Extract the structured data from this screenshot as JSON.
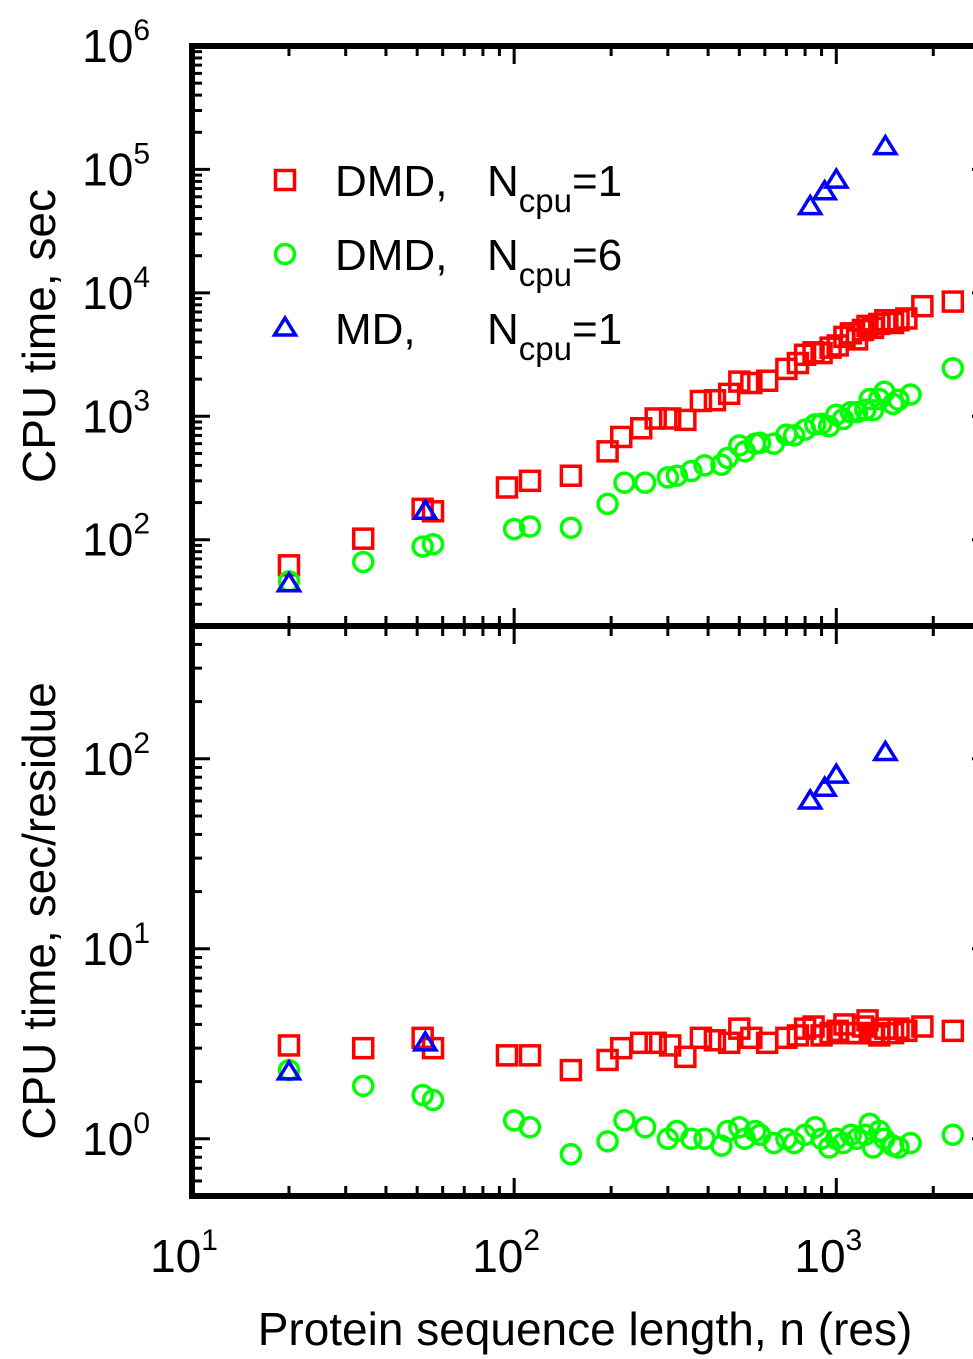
{
  "chart_data": {
    "type": "scatter",
    "xlabel": "Protein sequence length, n (res)",
    "x_scale": "log",
    "xlim": [
      10,
      3000
    ],
    "x_ticks": [
      {
        "value": 10,
        "base": "10",
        "exp": "1"
      },
      {
        "value": 100,
        "base": "10",
        "exp": "2"
      },
      {
        "value": 1000,
        "base": "10",
        "exp": "3"
      }
    ],
    "legend": {
      "placement": "top-left of upper panel",
      "entries": [
        {
          "series": "DMD, Ncpu=1",
          "name": "DMD, ",
          "var": "N",
          "sub": "cpu",
          "suffix": "=1",
          "marker": "square",
          "color": "#ff0000"
        },
        {
          "series": "DMD, Ncpu=6",
          "name": "DMD, ",
          "var": "N",
          "sub": "cpu",
          "suffix": "=6",
          "marker": "circle",
          "color": "#00ff00"
        },
        {
          "series": "MD, Ncpu=1",
          "name": "MD,",
          "var": "N",
          "sub": "cpu",
          "suffix": "=1",
          "marker": "triangle",
          "color": "#0000ff"
        }
      ]
    },
    "panels": [
      {
        "ylabel": "CPU time, sec",
        "y_scale": "log",
        "ylim": [
          20,
          1000000
        ],
        "y_ticks": [
          {
            "value": 100,
            "base": "10",
            "exp": "2"
          },
          {
            "value": 1000,
            "base": "10",
            "exp": "3"
          },
          {
            "value": 10000,
            "base": "10",
            "exp": "4"
          },
          {
            "value": 100000,
            "base": "10",
            "exp": "5"
          },
          {
            "value": 1000000,
            "base": "10",
            "exp": "6"
          }
        ],
        "series": [
          {
            "legend_ref": "DMD, Ncpu=1",
            "marker": "square",
            "color": "#ff0000",
            "points": [
              [
                20,
                62
              ],
              [
                34,
                102
              ],
              [
                52,
                178
              ],
              [
                56,
                170
              ],
              [
                95,
                265
              ],
              [
                112,
                300
              ],
              [
                150,
                330
              ],
              [
                195,
                520
              ],
              [
                215,
                680
              ],
              [
                248,
                800
              ],
              [
                275,
                960
              ],
              [
                305,
                960
              ],
              [
                340,
                935
              ],
              [
                380,
                1330
              ],
              [
                420,
                1350
              ],
              [
                465,
                1520
              ],
              [
                500,
                1910
              ],
              [
                545,
                1860
              ],
              [
                610,
                1940
              ],
              [
                700,
                2420
              ],
              [
                760,
                2700
              ],
              [
                800,
                3150
              ],
              [
                850,
                3300
              ],
              [
                900,
                3250
              ],
              [
                960,
                3600
              ],
              [
                1010,
                3750
              ],
              [
                1060,
                4400
              ],
              [
                1110,
                4700
              ],
              [
                1160,
                4200
              ],
              [
                1210,
                5000
              ],
              [
                1250,
                5400
              ],
              [
                1300,
                5200
              ],
              [
                1360,
                5600
              ],
              [
                1420,
                6000
              ],
              [
                1500,
                5700
              ],
              [
                1560,
                6000
              ],
              [
                1650,
                6200
              ],
              [
                1850,
                7800
              ],
              [
                2300,
                8500
              ]
            ]
          },
          {
            "legend_ref": "DMD, Ncpu=6",
            "marker": "circle",
            "color": "#00ff00",
            "points": [
              [
                20,
                46
              ],
              [
                34,
                66
              ],
              [
                52,
                88
              ],
              [
                56,
                92
              ],
              [
                100,
                122
              ],
              [
                112,
                128
              ],
              [
                150,
                125
              ],
              [
                195,
                195
              ],
              [
                220,
                290
              ],
              [
                255,
                290
              ],
              [
                300,
                320
              ],
              [
                320,
                330
              ],
              [
                355,
                360
              ],
              [
                390,
                400
              ],
              [
                440,
                405
              ],
              [
                460,
                460
              ],
              [
                500,
                580
              ],
              [
                520,
                520
              ],
              [
                560,
                600
              ],
              [
                580,
                610
              ],
              [
                640,
                600
              ],
              [
                700,
                710
              ],
              [
                740,
                700
              ],
              [
                800,
                780
              ],
              [
                860,
                860
              ],
              [
                900,
                870
              ],
              [
                950,
                830
              ],
              [
                1000,
                1030
              ],
              [
                1050,
                950
              ],
              [
                1110,
                1080
              ],
              [
                1160,
                1080
              ],
              [
                1230,
                1130
              ],
              [
                1270,
                1380
              ],
              [
                1300,
                1120
              ],
              [
                1360,
                1380
              ],
              [
                1410,
                1580
              ],
              [
                1500,
                1260
              ],
              [
                1560,
                1360
              ],
              [
                1700,
                1500
              ],
              [
                2300,
                2450
              ]
            ]
          },
          {
            "legend_ref": "MD, Ncpu=1",
            "marker": "triangle",
            "color": "#0000ff",
            "points": [
              [
                20,
                44
              ],
              [
                53,
                170
              ],
              [
                830,
                50000
              ],
              [
                920,
                66000
              ],
              [
                1000,
                82000
              ],
              [
                1420,
                153000
              ]
            ]
          }
        ]
      },
      {
        "ylabel": "CPU time, sec/residue",
        "y_scale": "log",
        "ylim": [
          0.5,
          500
        ],
        "y_ticks": [
          {
            "value": 1,
            "base": "10",
            "exp": "0"
          },
          {
            "value": 10,
            "base": "10",
            "exp": "1"
          },
          {
            "value": 100,
            "base": "10",
            "exp": "2"
          }
        ],
        "series": [
          {
            "legend_ref": "DMD, Ncpu=1",
            "marker": "square",
            "color": "#ff0000",
            "points": [
              [
                20,
                3.1
              ],
              [
                34,
                3.0
              ],
              [
                52,
                3.4
              ],
              [
                56,
                3.0
              ],
              [
                95,
                2.75
              ],
              [
                112,
                2.75
              ],
              [
                150,
                2.3
              ],
              [
                195,
                2.6
              ],
              [
                215,
                3.0
              ],
              [
                248,
                3.2
              ],
              [
                275,
                3.2
              ],
              [
                305,
                3.1
              ],
              [
                340,
                2.7
              ],
              [
                380,
                3.4
              ],
              [
                420,
                3.3
              ],
              [
                465,
                3.2
              ],
              [
                500,
                3.8
              ],
              [
                545,
                3.4
              ],
              [
                610,
                3.2
              ],
              [
                700,
                3.4
              ],
              [
                760,
                3.5
              ],
              [
                800,
                3.8
              ],
              [
                850,
                3.9
              ],
              [
                900,
                3.5
              ],
              [
                960,
                3.6
              ],
              [
                1010,
                3.7
              ],
              [
                1060,
                4.0
              ],
              [
                1110,
                3.6
              ],
              [
                1160,
                3.6
              ],
              [
                1210,
                3.9
              ],
              [
                1250,
                4.2
              ],
              [
                1300,
                3.6
              ],
              [
                1360,
                3.5
              ],
              [
                1420,
                3.8
              ],
              [
                1500,
                3.6
              ],
              [
                1560,
                3.8
              ],
              [
                1650,
                3.7
              ],
              [
                1850,
                3.9
              ],
              [
                2300,
                3.7
              ]
            ]
          },
          {
            "legend_ref": "DMD, Ncpu=6",
            "marker": "circle",
            "color": "#00ff00",
            "points": [
              [
                20,
                2.3
              ],
              [
                34,
                1.9
              ],
              [
                52,
                1.7
              ],
              [
                56,
                1.6
              ],
              [
                100,
                1.25
              ],
              [
                112,
                1.15
              ],
              [
                150,
                0.83
              ],
              [
                195,
                0.97
              ],
              [
                220,
                1.25
              ],
              [
                255,
                1.15
              ],
              [
                300,
                1.0
              ],
              [
                320,
                1.1
              ],
              [
                355,
                1.0
              ],
              [
                390,
                1.0
              ],
              [
                440,
                0.92
              ],
              [
                460,
                1.1
              ],
              [
                500,
                1.15
              ],
              [
                520,
                1.0
              ],
              [
                560,
                1.1
              ],
              [
                580,
                1.05
              ],
              [
                640,
                0.95
              ],
              [
                700,
                1.0
              ],
              [
                740,
                0.95
              ],
              [
                800,
                1.05
              ],
              [
                860,
                1.15
              ],
              [
                900,
                1.0
              ],
              [
                950,
                0.9
              ],
              [
                1000,
                1.0
              ],
              [
                1050,
                0.95
              ],
              [
                1110,
                1.05
              ],
              [
                1160,
                1.0
              ],
              [
                1230,
                1.05
              ],
              [
                1270,
                1.2
              ],
              [
                1300,
                0.9
              ],
              [
                1360,
                1.1
              ],
              [
                1410,
                1.0
              ],
              [
                1500,
                0.92
              ],
              [
                1560,
                0.9
              ],
              [
                1700,
                0.95
              ],
              [
                2300,
                1.05
              ]
            ]
          },
          {
            "legend_ref": "MD, Ncpu=1",
            "marker": "triangle",
            "color": "#0000ff",
            "points": [
              [
                20,
                2.25
              ],
              [
                53,
                3.2
              ],
              [
                830,
                60
              ],
              [
                920,
                70
              ],
              [
                1000,
                82
              ],
              [
                1420,
                108
              ]
            ]
          }
        ]
      }
    ]
  }
}
